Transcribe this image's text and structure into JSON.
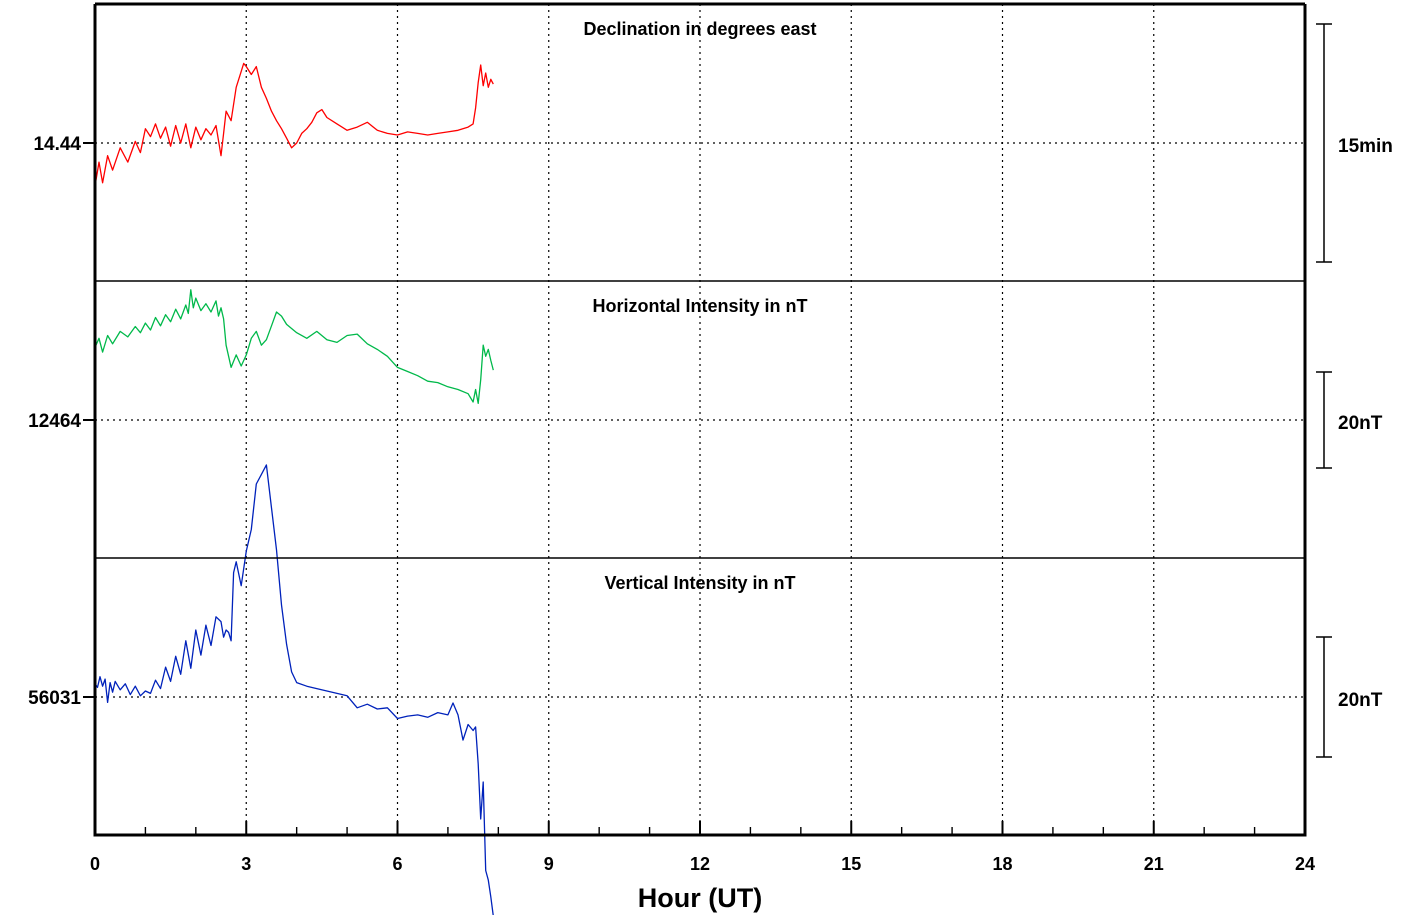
{
  "chart_data": {
    "type": "line",
    "xlabel": "Hour (UT)",
    "xlim": [
      0,
      24
    ],
    "x_ticks": [
      "0",
      "3",
      "6",
      "9",
      "12",
      "15",
      "18",
      "21",
      "24"
    ],
    "minor_tick_step": 1,
    "grid": true,
    "panels": [
      {
        "title": "Declination in degrees east",
        "ref_label": "14.44",
        "ref_value": 14.44,
        "scale_label": "15min",
        "scale_units_per_panel": 17.4,
        "color": "#ff0000",
        "series": {
          "x": [
            0,
            0.08,
            0.15,
            0.25,
            0.35,
            0.5,
            0.65,
            0.8,
            0.9,
            1.0,
            1.1,
            1.2,
            1.3,
            1.4,
            1.5,
            1.6,
            1.7,
            1.8,
            1.9,
            2.0,
            2.1,
            2.2,
            2.3,
            2.4,
            2.5,
            2.55,
            2.6,
            2.7,
            2.8,
            2.9,
            2.95,
            3.0,
            3.1,
            3.2,
            3.3,
            3.4,
            3.5,
            3.6,
            3.7,
            3.8,
            3.9,
            4.0,
            4.1,
            4.2,
            4.3,
            4.4,
            4.5,
            4.6,
            4.8,
            5.0,
            5.2,
            5.4,
            5.6,
            5.8,
            6.0,
            6.2,
            6.4,
            6.6,
            6.8,
            7.0,
            7.2,
            7.4,
            7.5,
            7.55,
            7.6,
            7.65,
            7.7,
            7.75,
            7.8,
            7.85,
            7.9
          ],
          "y": [
            -2.7,
            -1.2,
            -2.5,
            -0.8,
            -1.7,
            -0.3,
            -1.2,
            0.1,
            -0.6,
            0.9,
            0.4,
            1.2,
            0.3,
            1.0,
            -0.2,
            1.1,
            0.0,
            1.2,
            -0.3,
            1.0,
            0.2,
            0.9,
            0.5,
            1.1,
            -0.8,
            0.6,
            2.0,
            1.4,
            3.5,
            4.5,
            5.0,
            4.8,
            4.3,
            4.8,
            3.5,
            2.8,
            2.0,
            1.4,
            0.9,
            0.3,
            -0.3,
            0.0,
            0.6,
            0.9,
            1.3,
            1.9,
            2.1,
            1.6,
            1.2,
            0.8,
            1.0,
            1.3,
            0.8,
            0.6,
            0.5,
            0.7,
            0.6,
            0.5,
            0.6,
            0.7,
            0.8,
            1.0,
            1.2,
            2.2,
            3.8,
            4.9,
            3.6,
            4.4,
            3.5,
            4.0,
            3.7
          ]
        }
      },
      {
        "title": "Horizontal Intensity in nT",
        "ref_label": "12464",
        "ref_value": 12464,
        "scale_label": "20nT",
        "scale_units_per_panel": 40,
        "color": "#00b94a",
        "series": {
          "x": [
            0,
            0.08,
            0.15,
            0.25,
            0.35,
            0.5,
            0.65,
            0.8,
            0.9,
            1.0,
            1.1,
            1.2,
            1.3,
            1.4,
            1.5,
            1.6,
            1.7,
            1.8,
            1.85,
            1.9,
            1.95,
            2.0,
            2.1,
            2.2,
            2.3,
            2.4,
            2.45,
            2.5,
            2.55,
            2.6,
            2.7,
            2.8,
            2.9,
            3.0,
            3.1,
            3.2,
            3.3,
            3.4,
            3.5,
            3.6,
            3.7,
            3.8,
            4.0,
            4.2,
            4.4,
            4.6,
            4.8,
            5.0,
            5.2,
            5.4,
            5.6,
            5.8,
            6.0,
            6.2,
            6.4,
            6.6,
            6.8,
            7.0,
            7.2,
            7.4,
            7.5,
            7.55,
            7.6,
            7.65,
            7.7,
            7.75,
            7.8,
            7.85,
            7.9
          ],
          "y": [
            10.5,
            11.8,
            9.8,
            12.2,
            11.0,
            12.8,
            12.0,
            13.5,
            12.6,
            14.0,
            13.0,
            14.8,
            13.6,
            15.2,
            14.2,
            16.0,
            14.6,
            16.6,
            15.4,
            18.8,
            16.2,
            17.6,
            15.8,
            16.8,
            15.6,
            17.2,
            15.0,
            16.2,
            14.6,
            10.8,
            7.6,
            9.4,
            7.8,
            9.4,
            11.8,
            12.8,
            10.8,
            11.6,
            13.6,
            15.6,
            15.0,
            13.8,
            12.6,
            11.8,
            12.8,
            11.6,
            11.2,
            12.2,
            12.4,
            11.0,
            10.2,
            9.2,
            7.6,
            7.0,
            6.4,
            5.6,
            5.4,
            4.8,
            4.4,
            3.8,
            2.6,
            4.4,
            2.4,
            5.8,
            10.8,
            9.2,
            10.2,
            8.6,
            7.2
          ]
        }
      },
      {
        "title": "Vertical Intensity in nT",
        "ref_label": "56031",
        "ref_value": 56031,
        "scale_label": "20nT",
        "scale_units_per_panel": 46.3,
        "color": "#0022bb",
        "series": {
          "x": [
            0,
            0.05,
            0.1,
            0.15,
            0.2,
            0.25,
            0.3,
            0.35,
            0.4,
            0.5,
            0.6,
            0.7,
            0.8,
            0.9,
            1.0,
            1.1,
            1.2,
            1.3,
            1.4,
            1.5,
            1.6,
            1.7,
            1.8,
            1.9,
            2.0,
            2.1,
            2.2,
            2.3,
            2.4,
            2.5,
            2.55,
            2.6,
            2.65,
            2.7,
            2.75,
            2.8,
            2.9,
            3.0,
            3.1,
            3.2,
            3.3,
            3.4,
            3.5,
            3.6,
            3.7,
            3.8,
            3.9,
            4.0,
            4.2,
            4.4,
            4.6,
            4.8,
            5.0,
            5.2,
            5.4,
            5.6,
            5.8,
            6.0,
            6.2,
            6.4,
            6.6,
            6.8,
            7.0,
            7.1,
            7.2,
            7.3,
            7.4,
            7.5,
            7.55,
            7.6,
            7.65,
            7.7,
            7.75,
            7.8,
            7.85,
            7.9
          ],
          "y": [
            2.2,
            1.6,
            3.4,
            1.8,
            3.0,
            -0.9,
            2.4,
            0.8,
            2.6,
            1.2,
            2.2,
            0.4,
            1.8,
            0.2,
            1.0,
            0.6,
            2.8,
            1.4,
            5.0,
            2.6,
            6.8,
            3.8,
            9.4,
            4.8,
            11.2,
            7.0,
            12.0,
            8.6,
            13.4,
            12.6,
            10.0,
            11.2,
            10.8,
            9.4,
            20.8,
            22.6,
            18.6,
            24.4,
            28.0,
            35.6,
            37.2,
            38.8,
            31.6,
            24.6,
            15.4,
            8.8,
            4.2,
            2.4,
            1.8,
            1.4,
            1.0,
            0.6,
            0.2,
            -1.8,
            -1.2,
            -2.0,
            -1.8,
            -3.6,
            -3.2,
            -3.0,
            -3.4,
            -2.6,
            -3.0,
            -1.0,
            -3.0,
            -7.2,
            -4.6,
            -5.6,
            -5.0,
            -11.2,
            -20.4,
            -14.2,
            -29.0,
            -30.6,
            -33.4,
            -36.6
          ]
        }
      }
    ]
  }
}
